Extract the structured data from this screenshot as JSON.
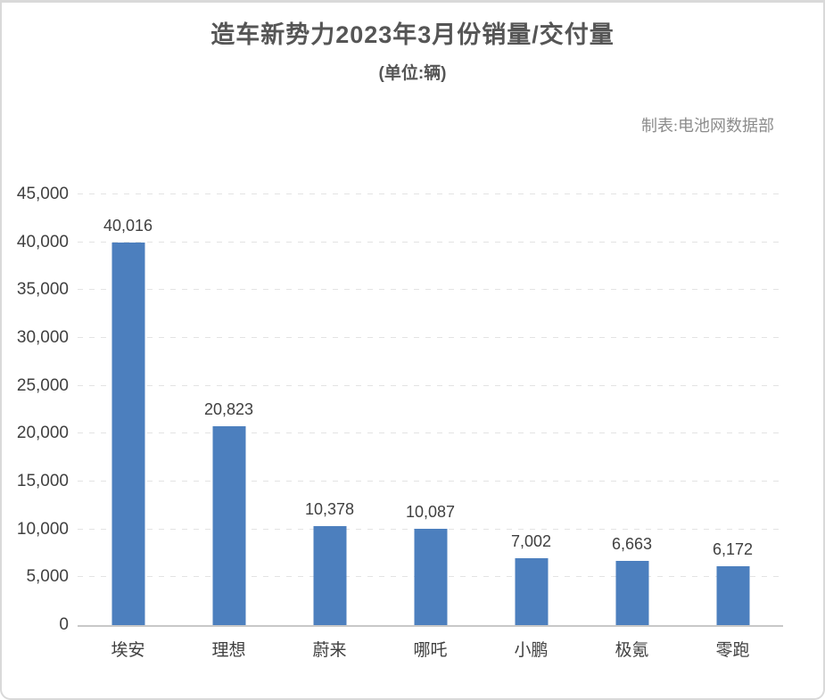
{
  "page": {
    "title": "造车新势力2023年3月份销量/交付量",
    "subtitle": "(单位:辆)",
    "credit": "制表:电池网数据部"
  },
  "colors": {
    "bar": "#4C7FBE",
    "title_text": "#555555",
    "credit_text": "#8c8c8c",
    "axis_text": "#404040",
    "gridline": "#e3e3e3",
    "zero_line": "#c8c8c8",
    "card_border": "#d9d9d9"
  },
  "chart_data": {
    "type": "bar",
    "title": "造车新势力2023年3月份销量/交付量",
    "subtitle": "(单位:辆)",
    "credit": "制表:电池网数据部",
    "categories": [
      "埃安",
      "理想",
      "蔚来",
      "哪吒",
      "小鹏",
      "极氪",
      "零跑"
    ],
    "values": [
      40016,
      20823,
      10378,
      10087,
      7002,
      6663,
      6172
    ],
    "value_labels": [
      "40,016",
      "20,823",
      "10,378",
      "10,087",
      "7,002",
      "6,663",
      "6,172"
    ],
    "ytick_labels": [
      "0",
      "5,000",
      "10,000",
      "15,000",
      "20,000",
      "25,000",
      "30,000",
      "35,000",
      "40,000",
      "45,000"
    ],
    "xlabel": "",
    "ylabel": "",
    "ylim": [
      0,
      45000
    ],
    "ytick_step": 5000,
    "grid": "horizontal-dashed",
    "legend": "none",
    "data_labels": true,
    "bar_color": "#4C7FBE"
  }
}
